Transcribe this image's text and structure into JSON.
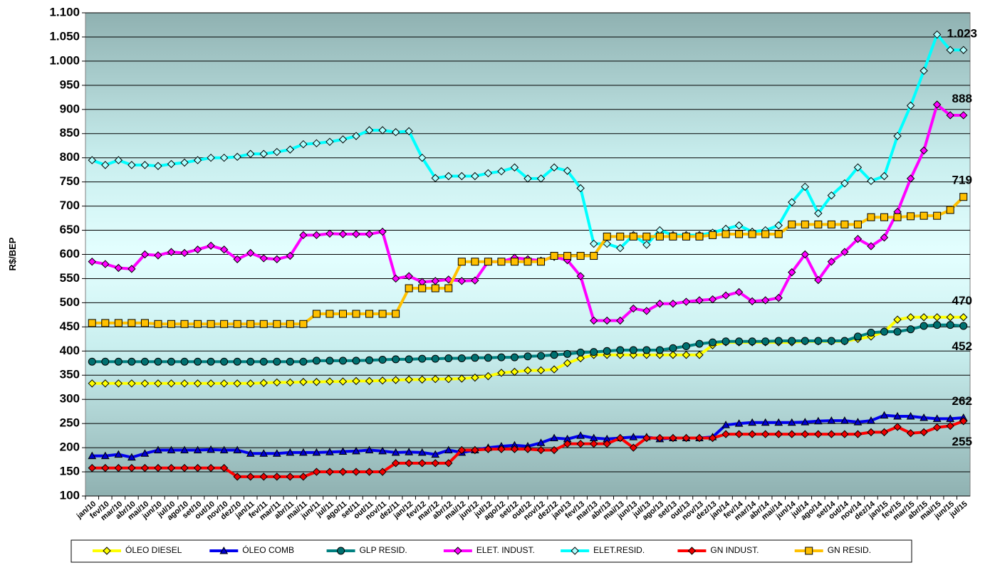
{
  "chart_data": {
    "type": "line",
    "y_label": "R$/BEP",
    "ylim": [
      100,
      1100
    ],
    "yticks": [
      100,
      150,
      200,
      250,
      300,
      350,
      400,
      450,
      500,
      550,
      600,
      650,
      700,
      750,
      800,
      850,
      900,
      950,
      {
        "value": 1000,
        "label": "1.000"
      },
      {
        "value": 1050,
        "label": "1.050"
      },
      {
        "value": 1100,
        "label": "1.100"
      }
    ],
    "grid": true,
    "legend": "bottom",
    "categories": [
      "jan/10",
      "fev/10",
      "mar/10",
      "abr/10",
      "mai/10",
      "jun/10",
      "jul/10",
      "ago/10",
      "set/10",
      "out/10",
      "nov/10",
      "dez/10",
      "jan/11",
      "fev/11",
      "mar/11",
      "abr/11",
      "mai/11",
      "jun/11",
      "jul/11",
      "ago/11",
      "set/11",
      "out/11",
      "nov/11",
      "dez/11",
      "jan/12",
      "fev/12",
      "mar/12",
      "abr/12",
      "mai/12",
      "jun/12",
      "jul/12",
      "ago/12",
      "set/12",
      "out/12",
      "nov/12",
      "dez/12",
      "jan/13",
      "fev/13",
      "mar/13",
      "abr/13",
      "mai/13",
      "jun/13",
      "jul/13",
      "ago/13",
      "set/13",
      "out/13",
      "nov/13",
      "dez/13",
      "jan/14",
      "fev/14",
      "mar/14",
      "abr/14",
      "mai/14",
      "jun/14",
      "jul/14",
      "ago/14",
      "set/14",
      "out/14",
      "nov/14",
      "dez/14",
      "jan/15",
      "fev/15",
      "mar/15",
      "abr/15",
      "mai/15",
      "jun/15",
      "jul/15"
    ],
    "series": [
      {
        "name": "ÓLEO DIESEL",
        "color": "#ffff00",
        "marker": "diamond",
        "marker_fill": "#ffff00",
        "last_label": "above",
        "values": [
          333,
          333,
          333,
          333,
          333,
          333,
          333,
          333,
          333,
          333,
          333,
          333,
          333,
          334,
          335,
          335,
          336,
          336,
          337,
          337,
          338,
          338,
          339,
          340,
          341,
          341,
          342,
          342,
          343,
          345,
          348,
          355,
          357,
          360,
          360,
          362,
          375,
          385,
          392,
          392,
          392,
          392,
          392,
          392,
          392,
          392,
          392,
          412,
          418,
          418,
          418,
          418,
          418,
          418,
          420,
          420,
          420,
          420,
          425,
          430,
          440,
          465,
          470,
          470,
          470,
          470,
          470
        ]
      },
      {
        "name": "ÓLEO COMB",
        "color": "#0000ee",
        "marker": "triangle",
        "marker_fill": "#0000cc",
        "last_label": "above",
        "values": [
          183,
          183,
          186,
          180,
          188,
          195,
          195,
          195,
          195,
          196,
          195,
          195,
          188,
          188,
          188,
          190,
          190,
          190,
          191,
          192,
          193,
          195,
          193,
          190,
          191,
          190,
          186,
          195,
          190,
          195,
          200,
          203,
          205,
          203,
          210,
          220,
          218,
          225,
          220,
          218,
          220,
          222,
          222,
          218,
          220,
          220,
          220,
          222,
          247,
          250,
          252,
          252,
          252,
          252,
          253,
          255,
          256,
          256,
          253,
          256,
          267,
          265,
          265,
          262,
          260,
          260,
          262
        ]
      },
      {
        "name": "GLP RESID.",
        "color": "#008080",
        "marker": "circle",
        "marker_fill": "#007070",
        "last_label": "below",
        "values": [
          378,
          378,
          378,
          378,
          378,
          378,
          378,
          378,
          378,
          378,
          378,
          378,
          378,
          378,
          378,
          378,
          378,
          380,
          380,
          380,
          380,
          381,
          382,
          383,
          383,
          384,
          384,
          385,
          385,
          386,
          386,
          387,
          387,
          389,
          390,
          392,
          394,
          397,
          398,
          400,
          402,
          402,
          402,
          402,
          406,
          410,
          415,
          418,
          420,
          420,
          420,
          420,
          421,
          421,
          421,
          421,
          421,
          421,
          430,
          438,
          440,
          440,
          445,
          452,
          454,
          454,
          452
        ]
      },
      {
        "name": "ELET. INDUST.",
        "color": "#ff00ff",
        "marker": "diamond",
        "marker_fill": "#ff00ff",
        "last_label": "above",
        "values": [
          585,
          580,
          572,
          570,
          600,
          598,
          605,
          603,
          610,
          618,
          610,
          590,
          603,
          592,
          590,
          597,
          640,
          640,
          643,
          642,
          642,
          642,
          647,
          550,
          555,
          543,
          545,
          548,
          545,
          546,
          585,
          585,
          593,
          590,
          587,
          595,
          588,
          555,
          463,
          463,
          463,
          488,
          483,
          498,
          498,
          502,
          505,
          507,
          515,
          522,
          503,
          505,
          510,
          563,
          600,
          547,
          585,
          605,
          632,
          617,
          635,
          688,
          757,
          815,
          910,
          888,
          888
        ]
      },
      {
        "name": "ELET.RESID.",
        "color": "#00ffff",
        "marker": "diamond",
        "marker_fill": "#b0ffff",
        "last_label": "above",
        "values": [
          795,
          785,
          795,
          785,
          785,
          783,
          787,
          790,
          795,
          800,
          800,
          802,
          808,
          808,
          812,
          817,
          828,
          830,
          833,
          838,
          845,
          857,
          857,
          853,
          855,
          800,
          758,
          762,
          762,
          762,
          768,
          772,
          780,
          757,
          757,
          780,
          773,
          737,
          622,
          622,
          613,
          640,
          620,
          650,
          640,
          640,
          640,
          645,
          653,
          660,
          647,
          650,
          660,
          708,
          740,
          685,
          722,
          747,
          780,
          752,
          762,
          845,
          908,
          980,
          1055,
          1023,
          1023
        ],
        "value_labels": [
          null,
          null,
          null,
          null,
          null,
          null,
          null,
          null,
          null,
          null,
          null,
          null,
          null,
          null,
          null,
          null,
          null,
          null,
          null,
          null,
          null,
          null,
          null,
          null,
          null,
          null,
          null,
          null,
          null,
          null,
          null,
          null,
          null,
          null,
          null,
          null,
          null,
          null,
          null,
          null,
          null,
          null,
          null,
          null,
          null,
          null,
          null,
          null,
          null,
          null,
          null,
          null,
          null,
          null,
          null,
          null,
          null,
          null,
          null,
          null,
          null,
          null,
          null,
          null,
          null,
          null,
          "1.023"
        ]
      },
      {
        "name": "GN INDUST.",
        "color": "#ff0000",
        "marker": "diamond",
        "marker_fill": "#ee0000",
        "last_label": "below",
        "values": [
          158,
          158,
          158,
          158,
          158,
          158,
          158,
          158,
          158,
          158,
          158,
          140,
          140,
          140,
          140,
          140,
          140,
          150,
          150,
          150,
          150,
          150,
          150,
          168,
          168,
          168,
          168,
          168,
          195,
          195,
          197,
          197,
          197,
          197,
          195,
          195,
          208,
          208,
          208,
          208,
          220,
          200,
          220,
          220,
          220,
          220,
          220,
          220,
          228,
          228,
          228,
          228,
          228,
          228,
          228,
          228,
          228,
          228,
          228,
          232,
          232,
          243,
          230,
          232,
          242,
          245,
          255
        ]
      },
      {
        "name": "GN RESID.",
        "color": "#ffc000",
        "marker": "square",
        "marker_fill": "#ffc000",
        "last_label": "above",
        "values": [
          458,
          458,
          458,
          458,
          458,
          456,
          456,
          456,
          456,
          456,
          456,
          456,
          456,
          456,
          456,
          456,
          456,
          477,
          477,
          477,
          477,
          477,
          477,
          477,
          530,
          530,
          530,
          530,
          585,
          585,
          585,
          585,
          585,
          585,
          585,
          597,
          597,
          597,
          597,
          637,
          637,
          637,
          637,
          637,
          637,
          637,
          637,
          640,
          642,
          642,
          642,
          642,
          642,
          662,
          662,
          662,
          662,
          662,
          662,
          677,
          677,
          677,
          679,
          680,
          680,
          692,
          719
        ]
      }
    ]
  }
}
